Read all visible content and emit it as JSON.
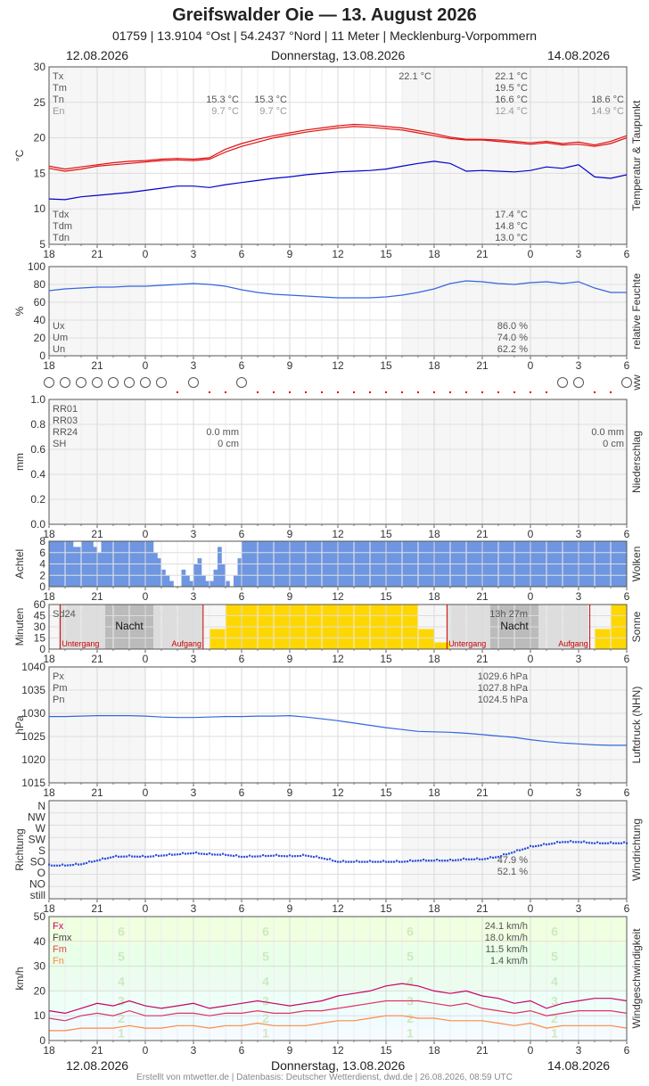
{
  "header": {
    "title": "Greifswalder Oie  —  13. August 2026",
    "subtitle": "01759  |  13.9104 °Ost  |  54.2437 °Nord  |  11 Meter  |  Mecklenburg-Vorpommern"
  },
  "dates": {
    "left": "12.08.2026",
    "center": "Donnerstag, 13.08.2026",
    "right": "14.08.2026"
  },
  "footer": "Erstellt von mtwetter.de | Datenbasis: Deutscher Wetterdienst, dwd.de | 26.08.2026, 08:59 UTC",
  "x_ticks": [
    "18",
    "21",
    "0",
    "3",
    "6",
    "9",
    "12",
    "15",
    "18",
    "21",
    "0",
    "3",
    "6"
  ],
  "colors": {
    "temp": "#e01010",
    "dew": "#0000cc",
    "humidity": "#3366dd",
    "pressure": "#3366dd",
    "cloud": "#6f96e0",
    "sun": "#ffd700",
    "fx": "#cc0066",
    "fmx": "#cc0066",
    "fm": "#ee4444",
    "fn": "#ff8844"
  },
  "chart_data": [
    {
      "type": "line",
      "name": "temperature",
      "ylabel": "°C",
      "side_label": "Temperatur & Taupunkt",
      "ylim": [
        5,
        30
      ],
      "y_ticks": [
        "30",
        "25",
        "20",
        "15",
        "10",
        "5"
      ],
      "stats_top": {
        "labels": [
          "Tx",
          "Tm",
          "Tn",
          "En"
        ],
        "day1": [
          "",
          "",
          "15.3 °C",
          "9.7 °C"
        ],
        "day1b": [
          "",
          "",
          "15.3 °C",
          "9.7 °C"
        ],
        "tx_mark": "22.1 °C",
        "day2": [
          "22.1 °C",
          "19.5 °C",
          "16.6 °C",
          "12.4 °C"
        ],
        "day3": [
          "",
          "",
          "18.6 °C",
          "14.9 °C"
        ]
      },
      "stats_bottom": {
        "labels": [
          "Tdx",
          "Tdm",
          "Tdn"
        ],
        "values": [
          "17.4 °C",
          "14.8 °C",
          "13.0 °C"
        ]
      },
      "hours": [
        18,
        19,
        20,
        21,
        22,
        23,
        0,
        1,
        2,
        3,
        4,
        5,
        6,
        7,
        8,
        9,
        10,
        11,
        12,
        13,
        14,
        15,
        16,
        17,
        18,
        19,
        20,
        21,
        22,
        23,
        0,
        1,
        2,
        3,
        4,
        5,
        6
      ],
      "series": [
        {
          "values": [
            16.0,
            15.6,
            15.9,
            16.2,
            16.5,
            16.7,
            16.8,
            17.0,
            17.1,
            17.0,
            17.2,
            18.4,
            19.2,
            19.8,
            20.3,
            20.7,
            21.1,
            21.4,
            21.7,
            21.9,
            21.8,
            21.6,
            21.4,
            21.0,
            20.6,
            20.1,
            19.8,
            19.8,
            19.7,
            19.5,
            19.3,
            19.5,
            19.2,
            19.4,
            19.0,
            19.5,
            20.3
          ]
        },
        {
          "values": [
            15.7,
            15.3,
            15.6,
            16.0,
            16.2,
            16.4,
            16.6,
            16.8,
            16.9,
            16.8,
            17.0,
            18.0,
            18.8,
            19.4,
            20.0,
            20.4,
            20.8,
            21.1,
            21.4,
            21.6,
            21.5,
            21.3,
            21.1,
            20.7,
            20.3,
            19.9,
            19.7,
            19.7,
            19.5,
            19.3,
            19.1,
            19.3,
            19.0,
            19.1,
            18.8,
            19.2,
            20.0
          ]
        },
        {
          "values": [
            11.4,
            11.3,
            11.7,
            11.9,
            12.1,
            12.3,
            12.6,
            12.9,
            13.2,
            13.2,
            13.0,
            13.4,
            13.7,
            14.0,
            14.3,
            14.5,
            14.8,
            15.0,
            15.2,
            15.3,
            15.4,
            15.6,
            16.0,
            16.4,
            16.7,
            16.4,
            15.3,
            15.4,
            15.3,
            15.2,
            15.4,
            15.9,
            15.7,
            16.2,
            14.5,
            14.3,
            14.8
          ]
        }
      ]
    },
    {
      "type": "line",
      "name": "humidity",
      "ylabel": "%",
      "side_label": "relative Feuchte",
      "ylim": [
        0,
        100
      ],
      "y_ticks": [
        "100",
        "80",
        "60",
        "40",
        "20",
        "0"
      ],
      "stats": {
        "labels": [
          "Ux",
          "Um",
          "Un"
        ],
        "values": [
          "86.0 %",
          "74.0 %",
          "62.2 %"
        ]
      },
      "series": [
        {
          "values": [
            73,
            75,
            76,
            77,
            77,
            78,
            78,
            79,
            80,
            81,
            80,
            78,
            74,
            71,
            69,
            68,
            67,
            66,
            65,
            65,
            65,
            66,
            68,
            71,
            75,
            81,
            84,
            83,
            81,
            80,
            82,
            83,
            81,
            83,
            76,
            71,
            71
          ]
        }
      ]
    },
    {
      "type": "scatter",
      "name": "present weather",
      "side_label": "ww",
      "circle_hours": [
        18,
        19,
        20,
        21,
        22,
        23,
        0,
        1,
        3,
        6,
        3,
        4,
        6
      ],
      "dot_hours": [
        2,
        3,
        4,
        5,
        7,
        8,
        9,
        10,
        11,
        12,
        13,
        14,
        15,
        16,
        17,
        18,
        19,
        20,
        21,
        22,
        23,
        0,
        1,
        2,
        5,
        6
      ]
    },
    {
      "type": "bar",
      "name": "precipitation",
      "ylabel": "mm",
      "side_label": "Niederschlag",
      "ylim": [
        0,
        1
      ],
      "y_ticks": [
        "1.0",
        "0.8",
        "0.6",
        "0.4",
        "0.2",
        "0.0"
      ],
      "stats": {
        "labels": [
          "RR01",
          "RR03",
          "RR24",
          "SH"
        ],
        "day1": [
          "",
          "",
          "0.0 mm",
          "0 cm"
        ],
        "day2": [
          "",
          "",
          "0.0 mm",
          "0 cm"
        ]
      },
      "values": []
    },
    {
      "type": "bar",
      "name": "clouds",
      "ylabel": "Achtel",
      "side_label": "Wolken",
      "ylim": [
        0,
        8
      ],
      "y_ticks": [
        "8",
        "6",
        "4",
        "2",
        "0"
      ],
      "values": [
        8,
        8,
        8,
        8,
        8,
        8,
        7,
        7,
        8,
        8,
        8,
        7,
        6,
        8,
        8,
        8,
        8,
        8,
        8,
        8,
        8,
        8,
        8,
        8,
        8,
        8,
        6,
        5,
        3,
        2,
        1,
        0,
        0,
        3,
        2,
        1,
        4,
        5,
        2,
        1,
        1,
        3,
        7,
        4,
        1,
        0,
        2,
        5,
        8,
        8,
        8,
        8,
        8,
        8,
        8,
        8,
        8,
        8,
        8,
        8,
        8,
        8,
        8,
        8,
        8,
        8,
        8,
        8,
        8,
        8,
        8,
        8,
        8,
        8,
        8,
        8,
        8,
        8,
        8,
        8,
        8,
        8,
        8,
        8,
        8,
        8,
        8,
        8,
        8,
        8,
        8,
        8,
        8,
        8,
        8,
        8,
        8,
        8,
        8,
        8,
        8,
        8,
        8,
        8,
        8,
        8,
        8,
        8,
        8,
        8,
        8,
        8,
        8,
        8,
        8,
        8,
        8,
        8,
        8,
        8,
        8,
        8,
        8,
        8,
        8,
        8,
        8,
        8,
        8,
        8,
        8,
        8,
        8,
        8,
        8,
        8,
        8,
        8,
        8,
        8,
        8,
        8,
        8,
        8
      ]
    },
    {
      "type": "bar",
      "name": "sunshine",
      "ylabel": "Minuten",
      "side_label": "Sonne",
      "ylim": [
        0,
        60
      ],
      "y_ticks": [
        "60",
        "45",
        "30",
        "15",
        "0"
      ],
      "labels": {
        "sd24": "Sd24",
        "night": "Nacht",
        "night2": "Nacht",
        "sunset": "Untergang",
        "sunrise": "Aufgang",
        "sunset2": "Untergang",
        "sunrise2": "Aufgang",
        "total": "13h 27m"
      },
      "hours": [
        18,
        19,
        20,
        21,
        22,
        23,
        0,
        1,
        2,
        3,
        4,
        5,
        6,
        7,
        8,
        9,
        10,
        11,
        12,
        13,
        14,
        15,
        16,
        17,
        18,
        19,
        20,
        21,
        22,
        23,
        0,
        1,
        2,
        3,
        4,
        5
      ],
      "values": [
        0,
        0,
        0,
        0,
        0,
        0,
        0,
        0,
        0,
        0,
        27,
        60,
        60,
        60,
        60,
        60,
        60,
        60,
        60,
        60,
        60,
        60,
        60,
        27,
        9,
        0,
        0,
        0,
        0,
        0,
        0,
        0,
        0,
        0,
        27,
        60
      ]
    },
    {
      "type": "line",
      "name": "pressure",
      "ylabel": "hPa",
      "side_label": "Luftdruck (NHN)",
      "ylim": [
        1015,
        1040
      ],
      "y_ticks": [
        "1040",
        "1035",
        "1030",
        "1025",
        "1020",
        "1015"
      ],
      "stats": {
        "labels": [
          "Px",
          "Pm",
          "Pn"
        ],
        "values": [
          "1029.6 hPa",
          "1027.8 hPa",
          "1024.5 hPa"
        ]
      },
      "series": [
        {
          "values": [
            1029.3,
            1029.3,
            1029.4,
            1029.5,
            1029.5,
            1029.5,
            1029.4,
            1029.2,
            1029.1,
            1029.1,
            1029.2,
            1029.3,
            1029.3,
            1029.4,
            1029.4,
            1029.5,
            1029.2,
            1028.8,
            1028.4,
            1027.9,
            1027.4,
            1026.9,
            1026.5,
            1026.1,
            1026.0,
            1025.9,
            1025.7,
            1025.4,
            1025.1,
            1024.8,
            1024.3,
            1023.9,
            1023.6,
            1023.4,
            1023.2,
            1023.1,
            1023.1
          ]
        }
      ]
    },
    {
      "type": "scatter",
      "name": "wind direction",
      "ylabel": "Richtung",
      "side_label": "Windrichtung",
      "y_ticks": [
        "N",
        "NW",
        "W",
        "SW",
        "S",
        "SO",
        "O",
        "NO",
        "still"
      ],
      "stats": {
        "values": [
          "47.9 %",
          "52.1 %"
        ]
      },
      "series": [
        {
          "values": [
            75,
            75,
            80,
            95,
            110,
            112,
            110,
            115,
            120,
            125,
            120,
            118,
            110,
            112,
            115,
            112,
            115,
            105,
            90,
            90,
            90,
            90,
            90,
            95,
            95,
            95,
            100,
            100,
            110,
            130,
            150,
            160,
            170,
            170,
            165,
            165,
            165
          ]
        }
      ]
    },
    {
      "type": "line",
      "name": "wind speed",
      "ylabel": "km/h",
      "side_label": "Windgeschwindigkeit",
      "ylim": [
        0,
        50
      ],
      "y_ticks": [
        "50",
        "40",
        "30",
        "20",
        "10",
        "0"
      ],
      "stats": {
        "labels": [
          "Fx",
          "Fmx",
          "Fm",
          "Fn"
        ],
        "values": [
          "24.1 km/h",
          "18.0 km/h",
          "11.5 km/h",
          "1.4 km/h"
        ]
      },
      "bft_labels": [
        "6",
        "5",
        "4",
        "3",
        "2",
        "1"
      ],
      "series": [
        {
          "values": [
            12,
            11,
            13,
            15,
            14,
            16,
            14,
            13,
            14,
            15,
            13,
            14,
            15,
            16,
            15,
            14,
            15,
            16,
            18,
            19,
            20,
            22,
            23,
            22,
            20,
            19,
            20,
            18,
            17,
            15,
            16,
            13,
            15,
            16,
            17,
            17,
            16
          ]
        },
        {
          "values": [
            9,
            8,
            10,
            11,
            10,
            12,
            10,
            10,
            11,
            11,
            10,
            11,
            11,
            12,
            11,
            11,
            12,
            12,
            13,
            14,
            15,
            16,
            16,
            16,
            15,
            14,
            15,
            13,
            12,
            11,
            12,
            10,
            11,
            12,
            12,
            12,
            11
          ]
        },
        {
          "values": [
            4,
            4,
            5,
            5,
            5,
            6,
            5,
            5,
            6,
            6,
            5,
            6,
            6,
            7,
            6,
            6,
            6,
            7,
            8,
            8,
            9,
            10,
            10,
            9,
            9,
            8,
            8,
            8,
            7,
            6,
            7,
            5,
            6,
            6,
            6,
            6,
            5
          ]
        }
      ]
    }
  ]
}
